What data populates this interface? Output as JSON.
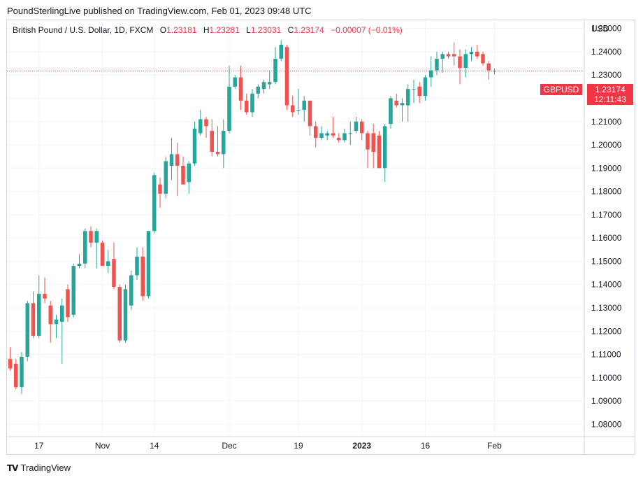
{
  "header": {
    "published": "PoundSterlingLive published on TradingView.com, Feb 01, 2023 09:48 UTC"
  },
  "legend": {
    "title": "British Pound / U.S. Dollar, 1D, FXCM",
    "o_label": "O",
    "o": "1.23181",
    "h_label": "H",
    "h": "1.23281",
    "l_label": "L",
    "l": "1.23031",
    "c_label": "C",
    "c": "1.23174",
    "change": "−0.00007 (−0.01%)"
  },
  "price_scale": {
    "currency": "USD"
  },
  "last_price": {
    "symbol": "GBPUSD",
    "price": "1.23174",
    "countdown": "12:11:43"
  },
  "footer": {
    "brand": "TradingView"
  },
  "colors": {
    "up": "#26a69a",
    "down": "#ef5350",
    "grid": "#f0f3fa",
    "border": "#d1d4dc"
  },
  "chart_data": {
    "type": "candlestick",
    "symbol": "GBPUSD",
    "ylim": [
      1.075,
      1.2535
    ],
    "y_ticks": [
      "1.25000",
      "1.24000",
      "1.23000",
      "1.22000",
      "1.21000",
      "1.20000",
      "1.19000",
      "1.18000",
      "1.17000",
      "1.16000",
      "1.15000",
      "1.14000",
      "1.13000",
      "1.12000",
      "1.11000",
      "1.10000",
      "1.09000",
      "1.08000"
    ],
    "x_ticks": [
      {
        "label": "17",
        "index": 5
      },
      {
        "label": "Nov",
        "index": 16
      },
      {
        "label": "14",
        "index": 25
      },
      {
        "label": "Dec",
        "index": 38
      },
      {
        "label": "19",
        "index": 50
      },
      {
        "label": "2023",
        "index": 61,
        "bold": true
      },
      {
        "label": "16",
        "index": 72
      },
      {
        "label": "Feb",
        "index": 84
      }
    ],
    "last_close": 1.23174,
    "candles": [
      {
        "o": 1.108,
        "h": 1.113,
        "l": 1.103,
        "c": 1.104
      },
      {
        "o": 1.106,
        "h": 1.108,
        "l": 1.095,
        "c": 1.096
      },
      {
        "o": 1.096,
        "h": 1.111,
        "l": 1.093,
        "c": 1.109
      },
      {
        "o": 1.109,
        "h": 1.133,
        "l": 1.107,
        "c": 1.132
      },
      {
        "o": 1.132,
        "h": 1.137,
        "l": 1.117,
        "c": 1.118
      },
      {
        "o": 1.118,
        "h": 1.144,
        "l": 1.117,
        "c": 1.136
      },
      {
        "o": 1.136,
        "h": 1.143,
        "l": 1.132,
        "c": 1.134
      },
      {
        "o": 1.131,
        "h": 1.133,
        "l": 1.115,
        "c": 1.123
      },
      {
        "o": 1.123,
        "h": 1.127,
        "l": 1.117,
        "c": 1.125
      },
      {
        "o": 1.124,
        "h": 1.134,
        "l": 1.106,
        "c": 1.131
      },
      {
        "o": 1.138,
        "h": 1.14,
        "l": 1.124,
        "c": 1.126
      },
      {
        "o": 1.127,
        "h": 1.149,
        "l": 1.126,
        "c": 1.148
      },
      {
        "o": 1.148,
        "h": 1.153,
        "l": 1.147,
        "c": 1.149
      },
      {
        "o": 1.149,
        "h": 1.164,
        "l": 1.147,
        "c": 1.163
      },
      {
        "o": 1.163,
        "h": 1.165,
        "l": 1.156,
        "c": 1.158
      },
      {
        "o": 1.158,
        "h": 1.164,
        "l": 1.147,
        "c": 1.163
      },
      {
        "o": 1.158,
        "h": 1.159,
        "l": 1.148,
        "c": 1.148
      },
      {
        "o": 1.148,
        "h": 1.155,
        "l": 1.145,
        "c": 1.15
      },
      {
        "o": 1.151,
        "h": 1.158,
        "l": 1.138,
        "c": 1.139
      },
      {
        "o": 1.139,
        "h": 1.14,
        "l": 1.115,
        "c": 1.116
      },
      {
        "o": 1.116,
        "h": 1.14,
        "l": 1.115,
        "c": 1.138
      },
      {
        "o": 1.131,
        "h": 1.146,
        "l": 1.129,
        "c": 1.144
      },
      {
        "o": 1.144,
        "h": 1.156,
        "l": 1.142,
        "c": 1.152
      },
      {
        "o": 1.152,
        "h": 1.156,
        "l": 1.133,
        "c": 1.135
      },
      {
        "o": 1.135,
        "h": 1.163,
        "l": 1.134,
        "c": 1.163
      },
      {
        "o": 1.163,
        "h": 1.188,
        "l": 1.162,
        "c": 1.187
      },
      {
        "o": 1.183,
        "h": 1.186,
        "l": 1.173,
        "c": 1.179
      },
      {
        "o": 1.179,
        "h": 1.195,
        "l": 1.177,
        "c": 1.193
      },
      {
        "o": 1.191,
        "h": 1.203,
        "l": 1.185,
        "c": 1.196
      },
      {
        "o": 1.196,
        "h": 1.201,
        "l": 1.178,
        "c": 1.191
      },
      {
        "o": 1.191,
        "h": 1.195,
        "l": 1.184,
        "c": 1.183
      },
      {
        "o": 1.184,
        "h": 1.193,
        "l": 1.179,
        "c": 1.192
      },
      {
        "o": 1.192,
        "h": 1.21,
        "l": 1.191,
        "c": 1.207
      },
      {
        "o": 1.205,
        "h": 1.215,
        "l": 1.204,
        "c": 1.211
      },
      {
        "o": 1.211,
        "h": 1.212,
        "l": 1.203,
        "c": 1.208
      },
      {
        "o": 1.206,
        "h": 1.211,
        "l": 1.195,
        "c": 1.197
      },
      {
        "o": 1.197,
        "h": 1.208,
        "l": 1.195,
        "c": 1.196
      },
      {
        "o": 1.196,
        "h": 1.211,
        "l": 1.19,
        "c": 1.206
      },
      {
        "o": 1.206,
        "h": 1.234,
        "l": 1.205,
        "c": 1.225
      },
      {
        "o": 1.225,
        "h": 1.23,
        "l": 1.224,
        "c": 1.229
      },
      {
        "o": 1.229,
        "h": 1.234,
        "l": 1.215,
        "c": 1.219
      },
      {
        "o": 1.219,
        "h": 1.222,
        "l": 1.213,
        "c": 1.214
      },
      {
        "o": 1.214,
        "h": 1.224,
        "l": 1.212,
        "c": 1.222
      },
      {
        "o": 1.222,
        "h": 1.226,
        "l": 1.22,
        "c": 1.225
      },
      {
        "o": 1.224,
        "h": 1.228,
        "l": 1.222,
        "c": 1.227
      },
      {
        "o": 1.226,
        "h": 1.232,
        "l": 1.224,
        "c": 1.227
      },
      {
        "o": 1.227,
        "h": 1.242,
        "l": 1.226,
        "c": 1.237
      },
      {
        "o": 1.237,
        "h": 1.245,
        "l": 1.236,
        "c": 1.243
      },
      {
        "o": 1.242,
        "h": 1.243,
        "l": 1.215,
        "c": 1.217
      },
      {
        "o": 1.217,
        "h": 1.221,
        "l": 1.212,
        "c": 1.214
      },
      {
        "o": 1.215,
        "h": 1.224,
        "l": 1.213,
        "c": 1.215
      },
      {
        "o": 1.215,
        "h": 1.221,
        "l": 1.21,
        "c": 1.219
      },
      {
        "o": 1.219,
        "h": 1.219,
        "l": 1.204,
        "c": 1.208
      },
      {
        "o": 1.208,
        "h": 1.21,
        "l": 1.199,
        "c": 1.203
      },
      {
        "o": 1.203,
        "h": 1.208,
        "l": 1.202,
        "c": 1.205
      },
      {
        "o": 1.204,
        "h": 1.206,
        "l": 1.202,
        "c": 1.205
      },
      {
        "o": 1.205,
        "h": 1.212,
        "l": 1.203,
        "c": 1.204
      },
      {
        "o": 1.203,
        "h": 1.205,
        "l": 1.201,
        "c": 1.202
      },
      {
        "o": 1.202,
        "h": 1.207,
        "l": 1.201,
        "c": 1.205
      },
      {
        "o": 1.205,
        "h": 1.21,
        "l": 1.2,
        "c": 1.205
      },
      {
        "o": 1.206,
        "h": 1.212,
        "l": 1.205,
        "c": 1.21
      },
      {
        "o": 1.21,
        "h": 1.211,
        "l": 1.202,
        "c": 1.205
      },
      {
        "o": 1.205,
        "h": 1.206,
        "l": 1.19,
        "c": 1.198
      },
      {
        "o": 1.205,
        "h": 1.209,
        "l": 1.19,
        "c": 1.197
      },
      {
        "o": 1.204,
        "h": 1.206,
        "l": 1.191,
        "c": 1.19
      },
      {
        "o": 1.19,
        "h": 1.209,
        "l": 1.184,
        "c": 1.208
      },
      {
        "o": 1.209,
        "h": 1.221,
        "l": 1.207,
        "c": 1.22
      },
      {
        "o": 1.219,
        "h": 1.222,
        "l": 1.216,
        "c": 1.217
      },
      {
        "o": 1.217,
        "h": 1.22,
        "l": 1.21,
        "c": 1.218
      },
      {
        "o": 1.217,
        "h": 1.226,
        "l": 1.21,
        "c": 1.224
      },
      {
        "o": 1.224,
        "h": 1.228,
        "l": 1.218,
        "c": 1.224
      },
      {
        "o": 1.225,
        "h": 1.227,
        "l": 1.218,
        "c": 1.221
      },
      {
        "o": 1.221,
        "h": 1.23,
        "l": 1.219,
        "c": 1.229
      },
      {
        "o": 1.229,
        "h": 1.238,
        "l": 1.225,
        "c": 1.232
      },
      {
        "o": 1.232,
        "h": 1.24,
        "l": 1.23,
        "c": 1.237
      },
      {
        "o": 1.237,
        "h": 1.24,
        "l": 1.231,
        "c": 1.239
      },
      {
        "o": 1.239,
        "h": 1.24,
        "l": 1.237,
        "c": 1.238
      },
      {
        "o": 1.239,
        "h": 1.244,
        "l": 1.234,
        "c": 1.238
      },
      {
        "o": 1.238,
        "h": 1.241,
        "l": 1.226,
        "c": 1.233
      },
      {
        "o": 1.233,
        "h": 1.241,
        "l": 1.229,
        "c": 1.239
      },
      {
        "o": 1.239,
        "h": 1.242,
        "l": 1.236,
        "c": 1.24
      },
      {
        "o": 1.24,
        "h": 1.243,
        "l": 1.237,
        "c": 1.238
      },
      {
        "o": 1.239,
        "h": 1.24,
        "l": 1.234,
        "c": 1.235
      },
      {
        "o": 1.235,
        "h": 1.236,
        "l": 1.228,
        "c": 1.232
      },
      {
        "o": 1.2318,
        "h": 1.2328,
        "l": 1.2303,
        "c": 1.2317
      }
    ]
  }
}
